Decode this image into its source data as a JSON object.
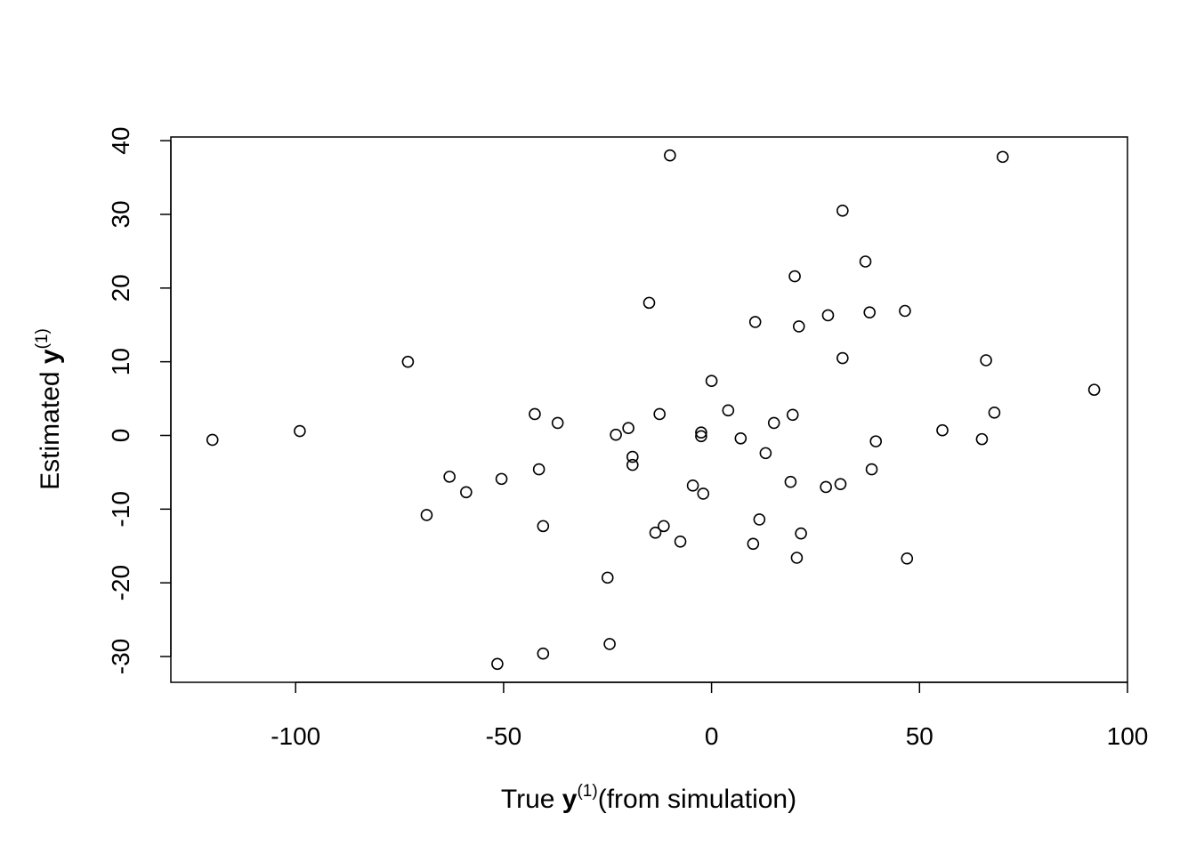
{
  "chart_data": {
    "type": "scatter",
    "title": "",
    "xlabel": {
      "prefix": "True ",
      "symbol": "y",
      "superscript": "(1)",
      "suffix": "(from simulation)"
    },
    "ylabel": {
      "prefix": "Estimated ",
      "symbol": "y",
      "superscript": "(1)",
      "suffix": ""
    },
    "xlim": [
      -130,
      100
    ],
    "ylim": [
      -33.5,
      40.5
    ],
    "x_ticks": [
      -100,
      -50,
      0,
      50,
      100
    ],
    "x_tick_labels": [
      "-100",
      "-50",
      "0",
      "50",
      "100"
    ],
    "y_ticks": [
      -30,
      -20,
      -10,
      0,
      10,
      20,
      30,
      40
    ],
    "y_tick_labels": [
      "-30",
      "-20",
      "-10",
      "0",
      "10",
      "20",
      "30",
      "40"
    ],
    "grid": false,
    "legend": "none",
    "marker": "open-circle",
    "color": "#000000",
    "points": [
      {
        "x": -120.0,
        "y": -0.6
      },
      {
        "x": -99.0,
        "y": 0.6
      },
      {
        "x": -73.0,
        "y": 10.0
      },
      {
        "x": -68.5,
        "y": -10.8
      },
      {
        "x": -63.0,
        "y": -5.6
      },
      {
        "x": -59.0,
        "y": -7.7
      },
      {
        "x": -51.5,
        "y": -31.0
      },
      {
        "x": -50.5,
        "y": -5.9
      },
      {
        "x": -42.5,
        "y": 2.9
      },
      {
        "x": -41.5,
        "y": -4.6
      },
      {
        "x": -40.5,
        "y": -12.3
      },
      {
        "x": -40.5,
        "y": -29.6
      },
      {
        "x": -37.0,
        "y": 1.7
      },
      {
        "x": -25.0,
        "y": -19.3
      },
      {
        "x": -24.5,
        "y": -28.3
      },
      {
        "x": -23.0,
        "y": 0.1
      },
      {
        "x": -20.0,
        "y": 1.0
      },
      {
        "x": -19.0,
        "y": -2.9
      },
      {
        "x": -19.0,
        "y": -4.0
      },
      {
        "x": -15.0,
        "y": 18.0
      },
      {
        "x": -13.5,
        "y": -13.2
      },
      {
        "x": -12.5,
        "y": 2.9
      },
      {
        "x": -11.5,
        "y": -12.3
      },
      {
        "x": -10.0,
        "y": 38.0
      },
      {
        "x": -7.5,
        "y": -14.4
      },
      {
        "x": -4.5,
        "y": -6.8
      },
      {
        "x": -2.5,
        "y": 0.4
      },
      {
        "x": -2.5,
        "y": -0.1
      },
      {
        "x": -2.0,
        "y": -7.9
      },
      {
        "x": 0.0,
        "y": 7.4
      },
      {
        "x": 4.0,
        "y": 3.4
      },
      {
        "x": 7.0,
        "y": -0.4
      },
      {
        "x": 10.0,
        "y": -14.7
      },
      {
        "x": 10.5,
        "y": 15.4
      },
      {
        "x": 11.5,
        "y": -11.4
      },
      {
        "x": 13.0,
        "y": -2.4
      },
      {
        "x": 15.0,
        "y": 1.7
      },
      {
        "x": 19.0,
        "y": -6.3
      },
      {
        "x": 19.5,
        "y": 2.8
      },
      {
        "x": 20.0,
        "y": 21.6
      },
      {
        "x": 20.5,
        "y": -16.6
      },
      {
        "x": 21.0,
        "y": 14.8
      },
      {
        "x": 21.5,
        "y": -13.3
      },
      {
        "x": 27.5,
        "y": -7.0
      },
      {
        "x": 28.0,
        "y": 16.3
      },
      {
        "x": 31.0,
        "y": -6.6
      },
      {
        "x": 31.5,
        "y": 30.5
      },
      {
        "x": 31.5,
        "y": 10.5
      },
      {
        "x": 37.0,
        "y": 23.6
      },
      {
        "x": 38.0,
        "y": 16.7
      },
      {
        "x": 38.5,
        "y": -4.6
      },
      {
        "x": 39.5,
        "y": -0.8
      },
      {
        "x": 46.5,
        "y": 16.9
      },
      {
        "x": 47.0,
        "y": -16.7
      },
      {
        "x": 55.5,
        "y": 0.7
      },
      {
        "x": 65.0,
        "y": -0.5
      },
      {
        "x": 66.0,
        "y": 10.2
      },
      {
        "x": 68.0,
        "y": 3.1
      },
      {
        "x": 70.0,
        "y": 37.8
      },
      {
        "x": 92.0,
        "y": 6.2
      }
    ]
  }
}
